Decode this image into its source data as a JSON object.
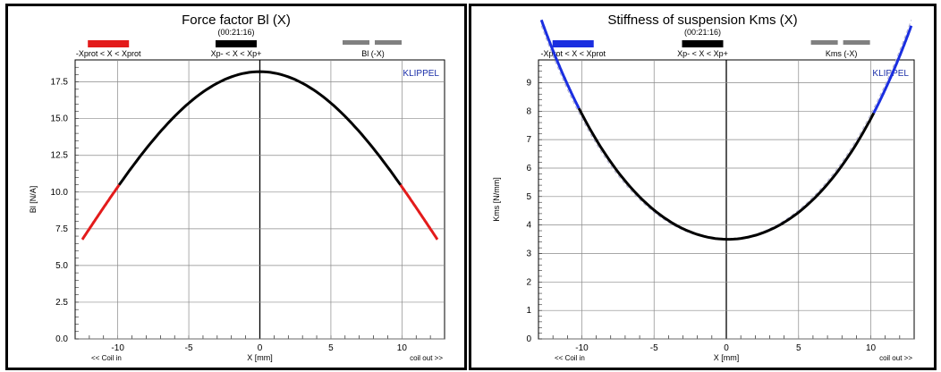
{
  "charts": [
    {
      "type": "line",
      "title": "Force factor Bl (X)",
      "subtitle": "(00:21:16)",
      "brand": "KLIPPEL",
      "ylabel": "Bl [N/A]",
      "xlabel": "X [mm]",
      "xlabel_left": "<< Coil in",
      "xlabel_right": "coil out >>",
      "xlim": [
        -13,
        13
      ],
      "ylim": [
        0,
        19
      ],
      "xticks": [
        -10,
        -5,
        0,
        5,
        10
      ],
      "yticks": [
        0.0,
        2.5,
        5.0,
        7.5,
        10.0,
        12.5,
        15.0,
        17.5
      ],
      "ytick_labels": [
        "0.0",
        "2.5",
        "5.0",
        "7.5",
        "10.0",
        "12.5",
        "15.0",
        "17.5"
      ],
      "legend": [
        {
          "label": "-Xprot < X < Xprot",
          "color": "#e31b1b"
        },
        {
          "label": "Xp- < X < Xp+",
          "color": "#000000"
        },
        {
          "label": "Bl (-X)",
          "color": "#808080",
          "double": true
        }
      ],
      "model": {
        "kind": "bl",
        "peak": 18.2,
        "c2": 0.088,
        "c4": 9.5e-05,
        "c1": 0.0
      },
      "outer_range": [
        -12.5,
        12.5
      ],
      "inner_range": [
        -9.9,
        9.9
      ],
      "outer_color": "#e31b1b",
      "inner_color": "#000000",
      "mirror_color": "#d08080"
    },
    {
      "type": "line",
      "title": "Stiffness of suspension Kms (X)",
      "subtitle": "(00:21:16)",
      "brand": "KLIPPEL",
      "ylabel": "Kms [N/mm]",
      "xlabel": "X [mm]",
      "xlabel_left": "<< Coil in",
      "xlabel_right": "coil out >>",
      "xlim": [
        -13,
        13
      ],
      "ylim": [
        0,
        9.8
      ],
      "xticks": [
        -10,
        -5,
        0,
        5,
        10
      ],
      "yticks": [
        0,
        1,
        2,
        3,
        4,
        5,
        6,
        7,
        8,
        9
      ],
      "ytick_labels": [
        "0",
        "1",
        "2",
        "3",
        "4",
        "5",
        "6",
        "7",
        "8",
        "9"
      ],
      "legend": [
        {
          "label": "-Xprot < X < Xprot",
          "color": "#1a2ee0"
        },
        {
          "label": "Xp- < X < Xp+",
          "color": "#000000"
        },
        {
          "label": "Kms (-X)",
          "color": "#808080",
          "double": true
        }
      ],
      "model": {
        "kind": "kms",
        "base": 3.5,
        "c2": 0.0382,
        "c4": 5e-05,
        "c1": -0.008
      },
      "outer_range": [
        -12.8,
        12.8
      ],
      "inner_range": [
        -10.2,
        10.2
      ],
      "outer_color": "#1a2ee0",
      "inner_color": "#000000",
      "mirror_color": "#b0b0d0"
    }
  ],
  "chart_data": [
    {
      "type": "line",
      "title": "Force factor Bl (X)",
      "xlabel": "X [mm]",
      "ylabel": "Bl [N/A]",
      "series": [
        {
          "name": "-Xprot < X < Xprot",
          "x": [
            -12.5,
            -11,
            -10,
            10,
            11,
            12.5
          ],
          "y": [
            5.0,
            7.2,
            8.8,
            8.8,
            7.2,
            5.0
          ]
        },
        {
          "name": "Xp- < X < Xp+",
          "x": [
            -10,
            -7.5,
            -5,
            -2.5,
            0,
            2.5,
            5,
            7.5,
            10
          ],
          "y": [
            8.8,
            13.0,
            16.2,
            17.7,
            18.2,
            17.7,
            16.2,
            13.0,
            8.8
          ]
        },
        {
          "name": "Bl (-X)",
          "x": [
            -12.5,
            -10,
            -5,
            0,
            5,
            10,
            12.5
          ],
          "y": [
            5.0,
            8.8,
            16.2,
            18.2,
            16.2,
            8.8,
            5.0
          ]
        }
      ]
    },
    {
      "type": "line",
      "title": "Stiffness of suspension Kms (X)",
      "xlabel": "X [mm]",
      "ylabel": "Kms [N/mm]",
      "series": [
        {
          "name": "-Xprot < X < Xprot",
          "x": [
            -12.8,
            -11.5,
            -10.2,
            10.2,
            11.5,
            12.8
          ],
          "y": [
            9.7,
            8.3,
            7.2,
            7.0,
            8.0,
            9.2
          ]
        },
        {
          "name": "Xp- < X < Xp+",
          "x": [
            -10,
            -7.5,
            -5,
            -2.5,
            0,
            2.5,
            5,
            7.5,
            10
          ],
          "y": [
            7.2,
            5.7,
            4.5,
            3.8,
            3.5,
            3.7,
            4.4,
            5.5,
            7.0
          ]
        },
        {
          "name": "Kms (-X)",
          "x": [
            -12.8,
            -10,
            -5,
            0,
            5,
            10,
            12.8
          ],
          "y": [
            9.4,
            7.1,
            4.45,
            3.5,
            4.45,
            7.1,
            9.4
          ]
        }
      ]
    }
  ]
}
